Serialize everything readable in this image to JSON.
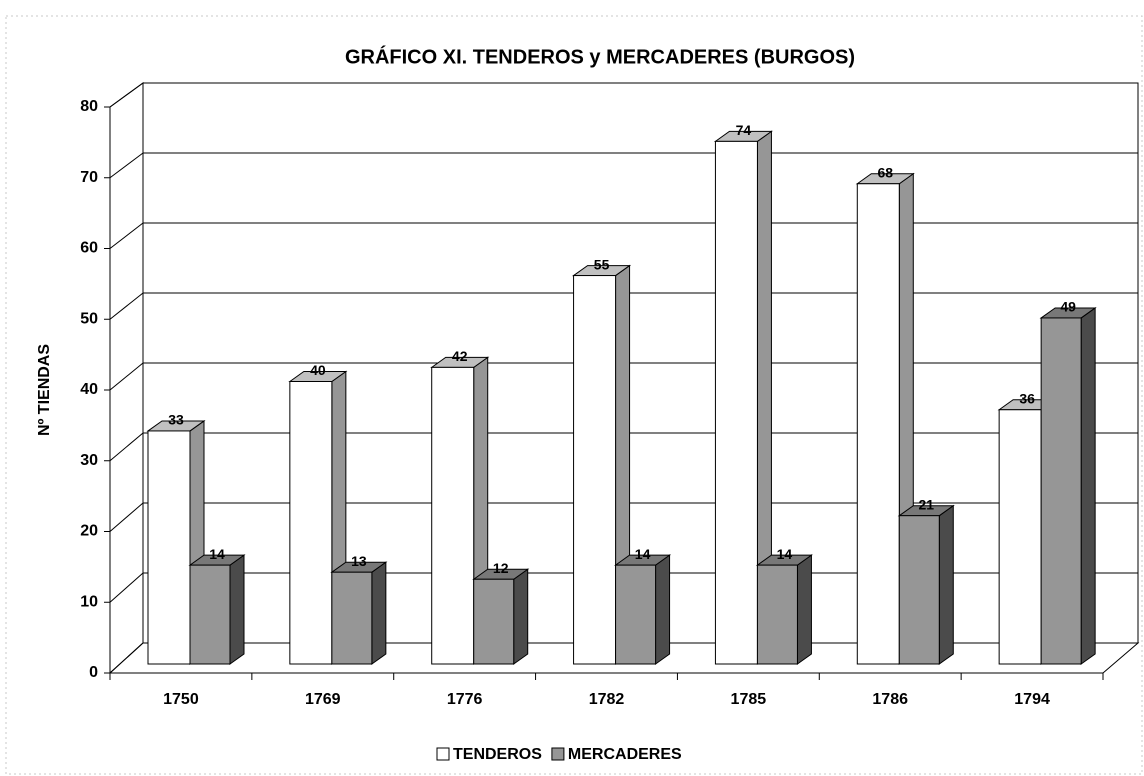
{
  "chart_data": {
    "type": "bar3d",
    "title": "GRÁFICO  XI. TENDEROS y MERCADERES (BURGOS)",
    "y_label": "Nº TIENDAS",
    "categories": [
      "1750",
      "1769",
      "1776",
      "1782",
      "1785",
      "1786",
      "1794"
    ],
    "series": [
      {
        "name": "TENDEROS",
        "color": "#ffffff",
        "values": [
          33,
          40,
          42,
          55,
          74,
          68,
          36
        ]
      },
      {
        "name": "MERCADERES",
        "color": "#969696",
        "values": [
          14,
          13,
          12,
          14,
          14,
          21,
          49
        ]
      }
    ],
    "ylim": [
      0,
      80
    ],
    "yticks": [
      0,
      10,
      20,
      30,
      40,
      50,
      60,
      70,
      80
    ],
    "grid": true,
    "legend": "bottom"
  }
}
